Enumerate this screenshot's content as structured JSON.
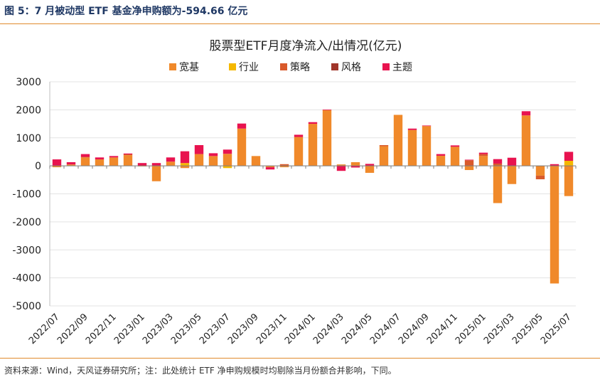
{
  "figure": {
    "title": "图 5：7 月被动型 ETF 基金净申购额为-594.66 亿元",
    "source": "资料来源：Wind，天风证券研究所；注：此处统计 ETF 净申购规模时均剔除当月份额合并影响，下同。"
  },
  "chart_data": {
    "type": "bar",
    "stacked": true,
    "title": "股票型ETF月度净流入/出情况(亿元)",
    "xlabel": "",
    "ylabel": "",
    "ylim": [
      -5000,
      3000
    ],
    "yticks": [
      3000,
      2000,
      1000,
      0,
      -1000,
      -2000,
      -3000,
      -4000,
      -5000
    ],
    "categories": [
      "2022/07",
      "2022/08",
      "2022/09",
      "2022/10",
      "2022/11",
      "2022/12",
      "2023/01",
      "2023/02",
      "2023/03",
      "2023/04",
      "2023/05",
      "2023/06",
      "2023/07",
      "2023/08",
      "2023/09",
      "2023/10",
      "2023/11",
      "2023/12",
      "2024/01",
      "2024/02",
      "2024/03",
      "2024/04",
      "2024/05",
      "2024/06",
      "2024/07",
      "2024/08",
      "2024/09",
      "2024/10",
      "2024/11",
      "2024/12",
      "2025/01",
      "2025/02",
      "2025/03",
      "2025/04",
      "2025/05",
      "2025/06",
      "2025/07"
    ],
    "tick_labels": [
      "2022/07",
      "2022/09",
      "2022/11",
      "2023/01",
      "2023/03",
      "2023/05",
      "2023/07",
      "2023/09",
      "2023/11",
      "2024/01",
      "2024/03",
      "2024/05",
      "2024/07",
      "2024/09",
      "2024/11",
      "2025/01",
      "2025/03",
      "2025/05",
      "2025/07"
    ],
    "series": [
      {
        "name": "宽基",
        "color": "#f0892a",
        "values": [
          -50,
          50,
          300,
          230,
          300,
          380,
          -20,
          -550,
          150,
          -80,
          420,
          350,
          430,
          1330,
          350,
          -50,
          -50,
          1030,
          1500,
          1990,
          50,
          130,
          -250,
          700,
          1820,
          1280,
          1420,
          360,
          680,
          -150,
          350,
          -1330,
          -650,
          1800,
          -350,
          -4200,
          -1080
        ]
      },
      {
        "name": "行业",
        "color": "#f5b800",
        "values": [
          0,
          0,
          0,
          0,
          0,
          0,
          0,
          0,
          0,
          100,
          0,
          0,
          -80,
          0,
          0,
          0,
          0,
          0,
          0,
          0,
          0,
          0,
          0,
          0,
          0,
          0,
          0,
          0,
          0,
          0,
          0,
          0,
          0,
          0,
          0,
          0,
          180
        ]
      },
      {
        "name": "策略",
        "color": "#d95a2b",
        "values": [
          0,
          0,
          20,
          0,
          0,
          30,
          0,
          0,
          0,
          0,
          0,
          0,
          0,
          0,
          0,
          0,
          60,
          0,
          0,
          0,
          0,
          0,
          0,
          40,
          0,
          0,
          0,
          0,
          0,
          200,
          70,
          80,
          0,
          0,
          -130,
          0,
          0
        ]
      },
      {
        "name": "风格",
        "color": "#a0352a",
        "values": [
          0,
          0,
          0,
          0,
          0,
          0,
          0,
          0,
          0,
          0,
          0,
          0,
          0,
          0,
          0,
          0,
          0,
          0,
          0,
          0,
          0,
          0,
          0,
          0,
          0,
          0,
          0,
          0,
          0,
          0,
          0,
          0,
          0,
          0,
          0,
          0,
          0
        ]
      },
      {
        "name": "主题",
        "color": "#e8134f",
        "values": [
          230,
          80,
          100,
          70,
          50,
          30,
          100,
          100,
          150,
          420,
          320,
          100,
          150,
          180,
          0,
          -80,
          0,
          80,
          60,
          20,
          -180,
          -60,
          70,
          0,
          0,
          50,
          20,
          60,
          50,
          20,
          50,
          160,
          290,
          150,
          0,
          60,
          320
        ]
      }
    ]
  }
}
